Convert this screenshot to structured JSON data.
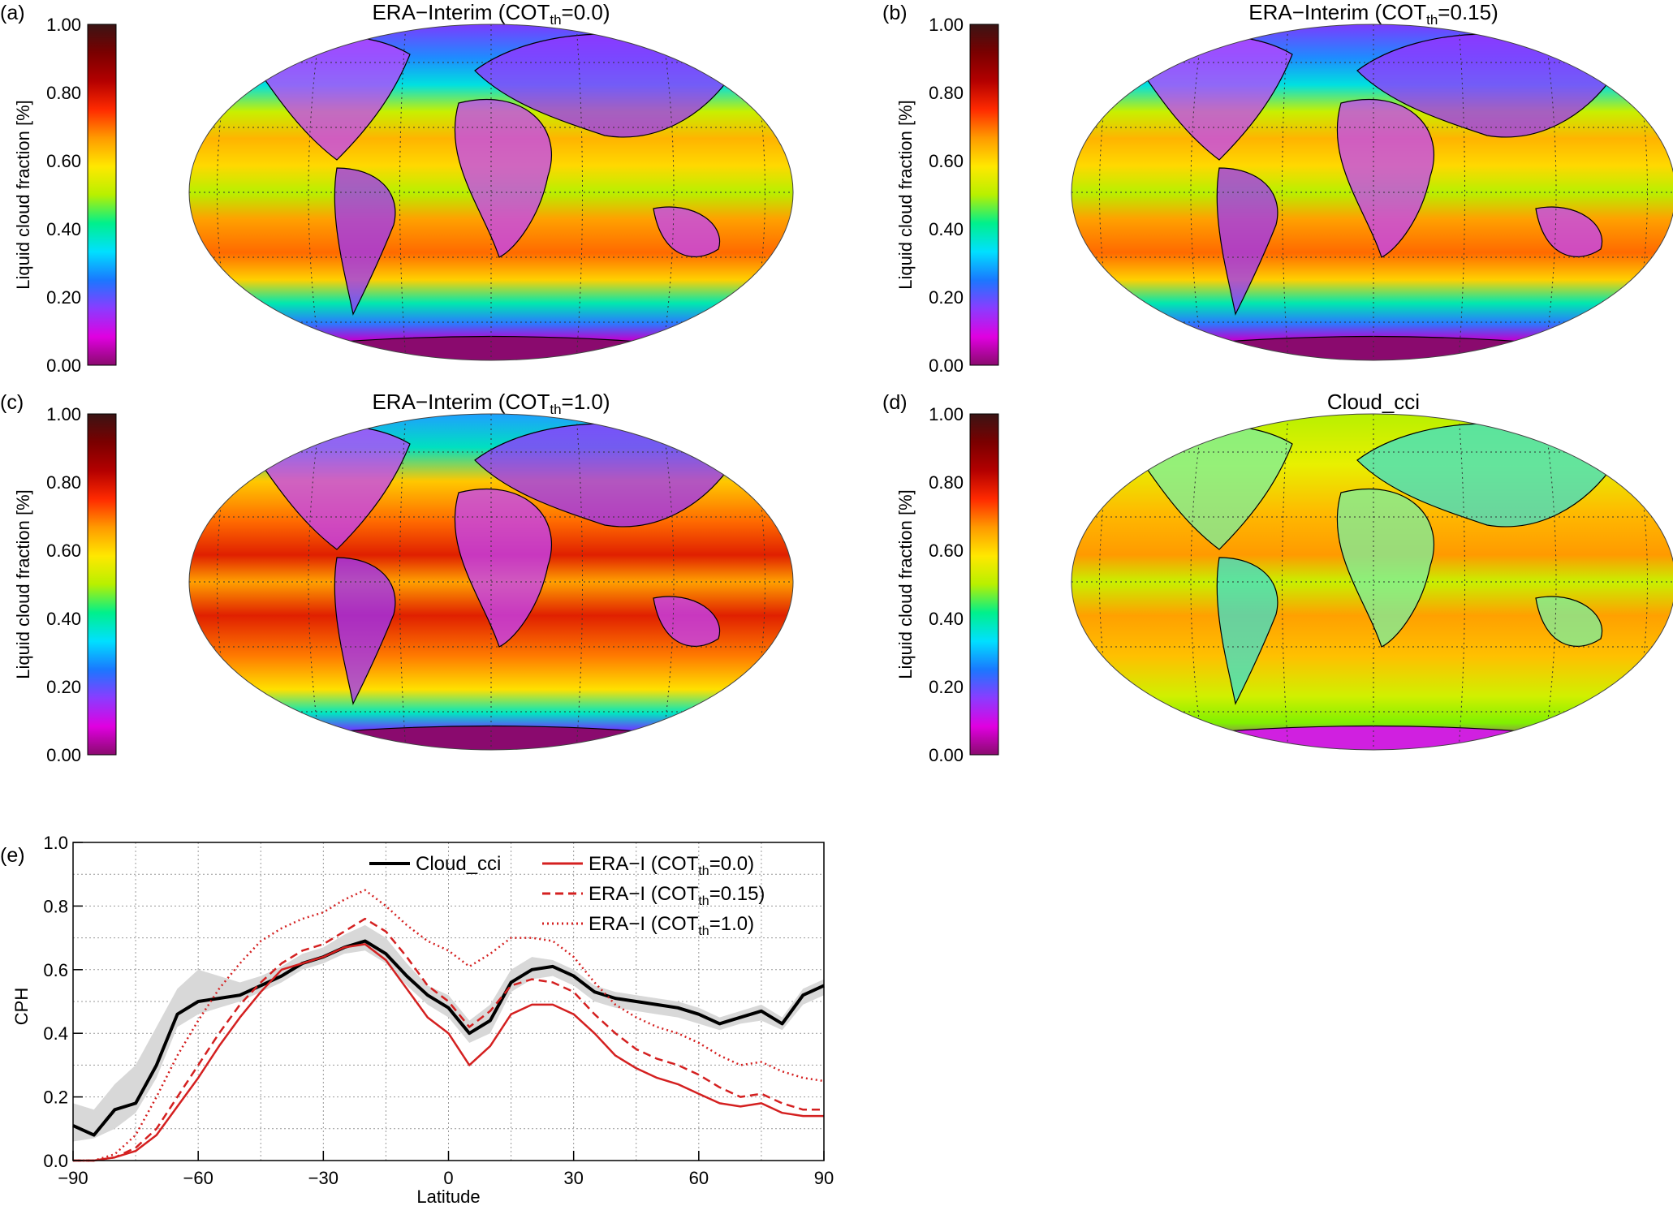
{
  "colorbar": {
    "label": "Liquid cloud fraction [%]",
    "ticks": [
      "0.00",
      "0.20",
      "0.40",
      "0.60",
      "0.80",
      "1.00"
    ],
    "colors": [
      "#8a0a6e",
      "#e000e0",
      "#8a3cff",
      "#1a78ff",
      "#00e0ff",
      "#00f08c",
      "#b8f000",
      "#ffe800",
      "#ff9a00",
      "#ff2a00",
      "#b40000",
      "#7a0000",
      "#3a1414"
    ]
  },
  "panels": [
    {
      "letter": "(a)",
      "title_main": "ERA−Interim (COT",
      "title_sub": "th",
      "title_end": "=0.0)"
    },
    {
      "letter": "(b)",
      "title_main": "ERA−Interim (COT",
      "title_sub": "th",
      "title_end": "=0.15)"
    },
    {
      "letter": "(c)",
      "title_main": "ERA−Interim (COT",
      "title_sub": "th",
      "title_end": "=1.0)"
    },
    {
      "letter": "(d)",
      "title_main": "Cloud_cci",
      "title_sub": "",
      "title_end": ""
    }
  ],
  "chart_data": {
    "type": "line",
    "letter": "(e)",
    "xlabel": "Latitude",
    "ylabel": "CPH",
    "xlim": [
      -90,
      90
    ],
    "ylim": [
      0,
      1
    ],
    "xticks": [
      "−90",
      "−60",
      "−30",
      "0",
      "30",
      "60",
      "90"
    ],
    "yticks": [
      "0.0",
      "0.2",
      "0.4",
      "0.6",
      "0.8",
      "1.0"
    ],
    "grid": true,
    "legend_position": "top",
    "x": [
      -90,
      -85,
      -80,
      -75,
      -70,
      -65,
      -60,
      -55,
      -50,
      -45,
      -40,
      -35,
      -30,
      -25,
      -20,
      -15,
      -10,
      -5,
      0,
      5,
      10,
      15,
      20,
      25,
      30,
      35,
      40,
      45,
      50,
      55,
      60,
      65,
      70,
      75,
      80,
      85,
      90
    ],
    "series": [
      {
        "name": "Cloud_cci",
        "color": "#000000",
        "style": "solid",
        "values": [
          0.11,
          0.08,
          0.16,
          0.18,
          0.3,
          0.46,
          0.5,
          0.51,
          0.52,
          0.55,
          0.58,
          0.62,
          0.64,
          0.67,
          0.69,
          0.65,
          0.58,
          0.52,
          0.48,
          0.4,
          0.44,
          0.56,
          0.6,
          0.61,
          0.58,
          0.53,
          0.51,
          0.5,
          0.49,
          0.48,
          0.46,
          0.43,
          0.45,
          0.47,
          0.43,
          0.52,
          0.55
        ]
      },
      {
        "name_main": "ERA−I (COT",
        "name_sub": "th",
        "name_end": "=0.0)",
        "color": "#d42020",
        "style": "solid",
        "values": [
          0.0,
          0.0,
          0.01,
          0.03,
          0.08,
          0.17,
          0.26,
          0.36,
          0.45,
          0.53,
          0.6,
          0.62,
          0.64,
          0.67,
          0.68,
          0.63,
          0.54,
          0.45,
          0.4,
          0.3,
          0.36,
          0.46,
          0.49,
          0.49,
          0.46,
          0.4,
          0.33,
          0.29,
          0.26,
          0.24,
          0.21,
          0.18,
          0.17,
          0.18,
          0.15,
          0.14,
          0.14
        ]
      },
      {
        "name_main": "ERA−I (COT",
        "name_sub": "th",
        "name_end": "=0.15)",
        "color": "#d42020",
        "style": "dashed",
        "values": [
          0.0,
          0.0,
          0.01,
          0.04,
          0.1,
          0.2,
          0.3,
          0.4,
          0.49,
          0.56,
          0.62,
          0.66,
          0.68,
          0.72,
          0.76,
          0.72,
          0.64,
          0.55,
          0.5,
          0.42,
          0.47,
          0.55,
          0.57,
          0.56,
          0.53,
          0.46,
          0.4,
          0.35,
          0.32,
          0.3,
          0.27,
          0.23,
          0.2,
          0.21,
          0.18,
          0.16,
          0.16
        ]
      },
      {
        "name_main": "ERA−I (COT",
        "name_sub": "th",
        "name_end": "=1.0)",
        "color": "#d42020",
        "style": "dotted",
        "values": [
          0.0,
          0.0,
          0.02,
          0.08,
          0.2,
          0.33,
          0.44,
          0.54,
          0.62,
          0.69,
          0.73,
          0.76,
          0.78,
          0.82,
          0.85,
          0.8,
          0.74,
          0.69,
          0.66,
          0.61,
          0.65,
          0.7,
          0.7,
          0.69,
          0.64,
          0.56,
          0.49,
          0.45,
          0.42,
          0.4,
          0.37,
          0.33,
          0.3,
          0.31,
          0.28,
          0.26,
          0.25
        ]
      }
    ],
    "uncertainty_band": {
      "lower": [
        0.06,
        0.07,
        0.1,
        0.15,
        0.26,
        0.42,
        0.46,
        0.48,
        0.5,
        0.53,
        0.56,
        0.6,
        0.62,
        0.65,
        0.66,
        0.62,
        0.55,
        0.49,
        0.45,
        0.37,
        0.4,
        0.53,
        0.57,
        0.58,
        0.55,
        0.5,
        0.48,
        0.47,
        0.46,
        0.45,
        0.43,
        0.41,
        0.43,
        0.44,
        0.41,
        0.49,
        0.52
      ],
      "upper": [
        0.18,
        0.16,
        0.24,
        0.3,
        0.42,
        0.54,
        0.6,
        0.58,
        0.56,
        0.58,
        0.61,
        0.65,
        0.67,
        0.71,
        0.74,
        0.7,
        0.62,
        0.55,
        0.52,
        0.44,
        0.49,
        0.6,
        0.64,
        0.63,
        0.6,
        0.55,
        0.53,
        0.52,
        0.51,
        0.5,
        0.48,
        0.45,
        0.47,
        0.49,
        0.45,
        0.54,
        0.57
      ]
    }
  }
}
